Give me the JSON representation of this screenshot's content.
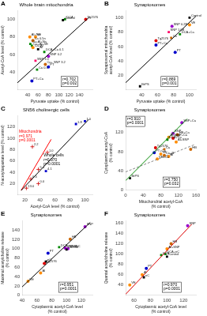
{
  "chart_data": [
    {
      "type": "scatter",
      "panel": "A",
      "title": "Whole brain mitochondria",
      "xlabel": "Pyruvate uptake (% control)",
      "ylabel": "Acetyl-CoA level (% control)",
      "xlim": [
        20,
        165
      ],
      "ylim": [
        20,
        110
      ],
      "xticks": [
        40,
        60,
        80,
        100,
        120,
        140
      ],
      "yticks": [
        40,
        60,
        80,
        100
      ],
      "grid": false,
      "series": [
        {
          "type": "line",
          "x": [
            20,
            160
          ],
          "values": [
            28,
            103
          ],
          "color": "#000000",
          "line_style": "solid"
        },
        {
          "type": "scatter",
          "points": [
            {
              "label": "Tg2576",
              "x": 152,
              "y": 100,
              "color": "#dd0000",
              "marker": "circle"
            },
            {
              "label": "DCA",
              "x": 112,
              "y": 100,
              "color": "#008800",
              "marker": "square"
            },
            {
              "label": "Control",
              "x": 108,
              "y": 99,
              "color": "#000000",
              "marker": "square"
            },
            {
              "label": "Al+Na",
              "x": 44,
              "y": 80,
              "color": "#ff8c00",
              "marker": "circle"
            },
            {
              "label": "VE",
              "x": 55,
              "y": 80,
              "color": "#ff8c00",
              "marker": "circle"
            },
            {
              "label": "Ca 0.5n",
              "x": 50,
              "y": 76,
              "color": "#cc6600",
              "marker": "circle"
            },
            {
              "label": "Ca+Al+Na",
              "x": 45,
              "y": 72,
              "color": "#008800",
              "marker": "square"
            },
            {
              "label": "Ca+Al+VE",
              "x": 48,
              "y": 70,
              "color": "#008800",
              "marker": "square"
            },
            {
              "label": "Ca+Al",
              "x": 50,
              "y": 68,
              "color": "#ff8c00",
              "marker": "circle"
            },
            {
              "label": "Al",
              "x": 60,
              "y": 66,
              "color": "#000000",
              "marker": "square"
            },
            {
              "label": "DCA+Ca 0.1",
              "x": 72,
              "y": 63,
              "color": "#008800",
              "marker": "square"
            },
            {
              "label": "SNP 0.2",
              "x": 80,
              "y": 58,
              "color": "#9900cc",
              "marker": "circle"
            },
            {
              "label": "SNP 1.0",
              "x": 55,
              "y": 53,
              "color": "#ff0066",
              "marker": "square"
            },
            {
              "label": "Ca+ SNP 3.2",
              "x": 74,
              "y": 49,
              "color": "#cc6600",
              "marker": "circle"
            },
            {
              "label": "PT",
              "x": 80,
              "y": 46,
              "color": "#0000cc",
              "marker": "circle"
            },
            {
              "label": "Ca 0.1",
              "x": 58,
              "y": 43,
              "color": "#008800",
              "marker": "square"
            },
            {
              "label": "PT+Ca",
              "x": 48,
              "y": 30,
              "color": "#0000cc",
              "marker": "circle"
            }
          ]
        }
      ],
      "annotations": [
        {
          "text": "r=0.702\np=0.002"
        }
      ]
    },
    {
      "type": "scatter",
      "panel": "B",
      "title": "Synaptosomes",
      "xlabel": "Pyruvate uptake (% control)",
      "ylabel": "Synaptosomal mitochondria\nacetyl-CoA level (% control)",
      "xlim": [
        20,
        108
      ],
      "ylim": [
        0,
        110
      ],
      "xticks": [
        40,
        60,
        80,
        100
      ],
      "yticks": [
        20,
        40,
        60,
        80,
        100
      ],
      "grid": false,
      "series": [
        {
          "type": "line",
          "x": [
            20,
            108
          ],
          "values": [
            10,
            102
          ],
          "color": "#000000",
          "line_style": "solid"
        },
        {
          "type": "scatter",
          "points": [
            {
              "label": "Control",
              "x": 100,
              "y": 100,
              "color": "#000000",
              "marker": "square"
            },
            {
              "label": "VE",
              "x": 100,
              "y": 90,
              "color": "#ff8c00",
              "marker": "circle"
            },
            {
              "label": "SNP 0.2B",
              "x": 78,
              "y": 88,
              "color": "#9900cc",
              "marker": "circle"
            },
            {
              "label": "SNP 1.0B",
              "x": 74,
              "y": 80,
              "color": "#ff0066",
              "marker": "square"
            },
            {
              "label": "DCA+Ca",
              "x": 88,
              "y": 77,
              "color": "#008800",
              "marker": "square"
            },
            {
              "label": "Ca",
              "x": 77,
              "y": 72,
              "color": "#cc6600",
              "marker": "square"
            },
            {
              "label": "Tg2576",
              "x": 58,
              "y": 68,
              "color": "#dd0000",
              "marker": "circle"
            },
            {
              "label": "PT+Ca",
              "x": 58,
              "y": 62,
              "color": "#0000cc",
              "marker": "circle"
            },
            {
              "label": "PT",
              "x": 82,
              "y": 52,
              "color": "#0000cc",
              "marker": "circle"
            },
            {
              "label": "BrPS",
              "x": 38,
              "y": 5,
              "color": "#000000",
              "marker": "square"
            }
          ]
        }
      ],
      "annotations": [
        {
          "text": "r=0.869\np=0.001"
        }
      ]
    },
    {
      "type": "scatter",
      "panel": "C",
      "title": "SN56 cholinergic cells",
      "xlabel": "Acetyl-CoA level (% control)",
      "ylabel": "N-acetylaspartate level (% control)",
      "xlim": [
        10,
        110
      ],
      "ylim": [
        0,
        140
      ],
      "xticks": [
        20,
        40,
        60,
        80,
        100
      ],
      "yticks": [
        20,
        40,
        60,
        80,
        100,
        120
      ],
      "grid": false,
      "series": [
        {
          "type": "line",
          "x": [
            15,
            105
          ],
          "values": [
            8,
            133
          ],
          "color": "black",
          "line_style": "solid"
        },
        {
          "type": "line",
          "x": [
            15,
            55
          ],
          "values": [
            8,
            98
          ],
          "color": "red",
          "line_style": "solid"
        },
        {
          "type": "scatter",
          "points": [
            {
              "label": "1.0",
              "x": 100,
              "y": 130,
              "color": "#0000cc",
              "marker": "square"
            },
            {
              "label": "1.8",
              "x": 88,
              "y": 125,
              "color": "#0000cc",
              "marker": "square"
            },
            {
              "label": "2.2",
              "x": 30,
              "y": 85,
              "color": "#cc0000",
              "marker": "plus"
            },
            {
              "label": "1.0",
              "x": 50,
              "y": 75,
              "color": "#cc0000",
              "marker": "plus"
            },
            {
              "label": "5.4",
              "x": 38,
              "y": 45,
              "color": "#cc0000",
              "marker": "plus"
            },
            {
              "label": "4.1",
              "x": 48,
              "y": 42,
              "color": "#0000cc",
              "marker": "square"
            },
            {
              "label": "0.4",
              "x": 28,
              "y": 28,
              "color": "#cc0000",
              "marker": "plus"
            },
            {
              "label": "0.0",
              "x": 38,
              "y": 20,
              "color": "#cc0000",
              "marker": "plus"
            },
            {
              "label": "13.0",
              "x": 22,
              "y": 12,
              "color": "#cc0000",
              "marker": "plus"
            }
          ]
        }
      ],
      "annotations": [
        {
          "text": "Mitochondria\nr=0.971\np=0.0001",
          "color": "red"
        },
        {
          "text": "Whole cells\nr=0.970\np=0.0001",
          "color": "black"
        }
      ]
    },
    {
      "type": "scatter",
      "panel": "D",
      "title": "Synaptosomes",
      "xlabel": "Mitochondrial acetyl-CoA\n(% control)",
      "ylabel": "Cytoplasmic acetyl-CoA\n(% control)",
      "xlim": [
        0,
        160
      ],
      "ylim": [
        0,
        155
      ],
      "xticks": [
        0,
        40,
        80,
        120,
        160
      ],
      "yticks": [
        0,
        40,
        80,
        120
      ],
      "grid": false,
      "series": [
        {
          "type": "line",
          "x": [
            0,
            140
          ],
          "values": [
            20,
            148
          ],
          "color": "#008800",
          "line_style": "solid"
        },
        {
          "type": "line",
          "x": [
            0,
            158
          ],
          "values": [
            38,
            95
          ],
          "color": "#888888",
          "line_style": "dashed"
        },
        {
          "type": "scatter",
          "points": [
            {
              "label": "SNP+Ca",
              "x": 128,
              "y": 140,
              "color": "#9900cc",
              "marker": "circle"
            },
            {
              "label": "SNP",
              "x": 108,
              "y": 118,
              "color": "#9900cc",
              "marker": "circle"
            },
            {
              "label": "HB+Ca",
              "x": 118,
              "y": 115,
              "color": "#cc6600",
              "marker": "circle"
            },
            {
              "label": "Al+SNP+Ca",
              "x": 98,
              "y": 110,
              "color": "#ff8c00",
              "marker": "circle"
            },
            {
              "label": "SLP",
              "x": 108,
              "y": 108,
              "color": "#dd0000",
              "marker": "circle"
            },
            {
              "label": "DCA+Ca",
              "x": 95,
              "y": 105,
              "color": "#008800",
              "marker": "square"
            },
            {
              "label": "Al+SNP",
              "x": 115,
              "y": 100,
              "color": "#ff8c00",
              "marker": "circle"
            },
            {
              "label": "Tg2576",
              "x": 68,
              "y": 88,
              "color": "#dd0000",
              "marker": "circle"
            },
            {
              "label": "Ca",
              "x": 88,
              "y": 85,
              "color": "#cc6600",
              "marker": "square"
            },
            {
              "label": "HB",
              "x": 148,
              "y": 85,
              "color": "#cc6600",
              "marker": "circle"
            },
            {
              "label": "PT+Ca",
              "x": 65,
              "y": 78,
              "color": "#0000cc",
              "marker": "circle"
            },
            {
              "label": "VE",
              "x": 80,
              "y": 75,
              "color": "#ff8c00",
              "marker": "circle"
            },
            {
              "label": "Ca+B",
              "x": 88,
              "y": 72,
              "color": "#cc6600",
              "marker": "circle"
            },
            {
              "label": "Al",
              "x": 98,
              "y": 70,
              "color": "#ff8c00",
              "marker": "circle"
            },
            {
              "label": "VE+Ca",
              "x": 72,
              "y": 65,
              "color": "#ff8c00",
              "marker": "circle"
            },
            {
              "label": "BrPS",
              "x": 10,
              "y": 25,
              "color": "#000000",
              "marker": "square"
            }
          ]
        }
      ],
      "annotations": [
        {
          "text": "r=0.910\np=0.0001"
        },
        {
          "text": "r=0.750\np=0.032"
        }
      ]
    },
    {
      "type": "scatter",
      "panel": "E",
      "title": "Synaptosomes",
      "xlabel": "Cytoplasmic acetyl-CoA level\n(% control)",
      "ylabel": "Maximal acetylcholine release\n(% control)",
      "xlim": [
        40,
        135
      ],
      "ylim": [
        0,
        160
      ],
      "xticks": [
        40,
        60,
        80,
        100,
        120
      ],
      "yticks": [
        0,
        20,
        40,
        60,
        80,
        100,
        120,
        140
      ],
      "grid": false,
      "series": [
        {
          "type": "line",
          "x": [
            40,
            132
          ],
          "values": [
            18,
            156
          ],
          "color": "#000000",
          "line_style": "solid"
        },
        {
          "type": "scatter",
          "points": [
            {
              "label": "SNP",
              "x": 125,
              "y": 147,
              "color": "#9900cc",
              "marker": "circle"
            },
            {
              "label": "HB",
              "x": 105,
              "y": 120,
              "color": "#cc6600",
              "marker": "circle"
            },
            {
              "label": "DCA",
              "x": 90,
              "y": 103,
              "color": "#008800",
              "marker": "square"
            },
            {
              "label": "SNP+Al",
              "x": 98,
              "y": 101,
              "color": "#9900cc",
              "marker": "circle"
            },
            {
              "label": "SNP+C",
              "x": 102,
              "y": 100,
              "color": "#9900cc",
              "marker": "circle"
            },
            {
              "label": "Control",
              "x": 100,
              "y": 98,
              "color": "#000000",
              "marker": "square"
            },
            {
              "label": "PT",
              "x": 75,
              "y": 90,
              "color": "#0000cc",
              "marker": "circle"
            },
            {
              "label": "nC",
              "x": 72,
              "y": 72,
              "color": "#000000",
              "marker": "square"
            },
            {
              "label": "Tg2576",
              "x": 70,
              "y": 68,
              "color": "#dd0000",
              "marker": "circle"
            },
            {
              "label": "Al",
              "x": 65,
              "y": 48,
              "color": "#ff8c00",
              "marker": "circle"
            },
            {
              "label": "VE",
              "x": 48,
              "y": 30,
              "color": "#ff8c00",
              "marker": "circle"
            }
          ]
        }
      ],
      "annotations": [
        {
          "text": "r=0.951\np=0.0001"
        }
      ]
    },
    {
      "type": "scatter",
      "panel": "F",
      "title": "Synaptosomes",
      "xlabel": "Cytoplasmic acetyl-CoA level\n(% control)",
      "ylabel": "Quantal acetylcholine release\n(% control)",
      "xlim": [
        50,
        135
      ],
      "ylim": [
        20,
        165
      ],
      "xticks": [
        60,
        80,
        100,
        120
      ],
      "yticks": [
        40,
        60,
        80,
        100,
        120,
        140,
        160
      ],
      "grid": false,
      "series": [
        {
          "type": "line",
          "x": [
            50,
            130
          ],
          "values": [
            22,
            158
          ],
          "color": "#dd0000",
          "line_style": "solid"
        },
        {
          "type": "scatter",
          "points": [
            {
              "label": "SNP",
              "x": 125,
              "y": 155,
              "color": "#9900cc",
              "marker": "circle"
            },
            {
              "label": "HB",
              "x": 105,
              "y": 120,
              "color": "#cc6600",
              "marker": "circle"
            },
            {
              "label": "Al+SNP",
              "x": 100,
              "y": 110,
              "color": "#ff8c00",
              "marker": "circle"
            },
            {
              "label": "DCA+nC",
              "x": 98,
              "y": 100,
              "color": "#008800",
              "marker": "square"
            },
            {
              "label": "DCA",
              "x": 93,
              "y": 98,
              "color": "#008800",
              "marker": "square"
            },
            {
              "label": "Control",
              "x": 100,
              "y": 95,
              "color": "#000000",
              "marker": "square"
            },
            {
              "label": "PT",
              "x": 75,
              "y": 72,
              "color": "#0000cc",
              "marker": "circle"
            },
            {
              "label": "Al",
              "x": 70,
              "y": 60,
              "color": "#ff8c00",
              "marker": "circle"
            },
            {
              "label": "nC",
              "x": 72,
              "y": 55,
              "color": "#000000",
              "marker": "square"
            },
            {
              "label": "VE",
              "x": 55,
              "y": 40,
              "color": "#ff8c00",
              "marker": "circle"
            }
          ]
        }
      ],
      "annotations": [
        {
          "text": "r=0.970\np=0.0001"
        }
      ]
    }
  ]
}
